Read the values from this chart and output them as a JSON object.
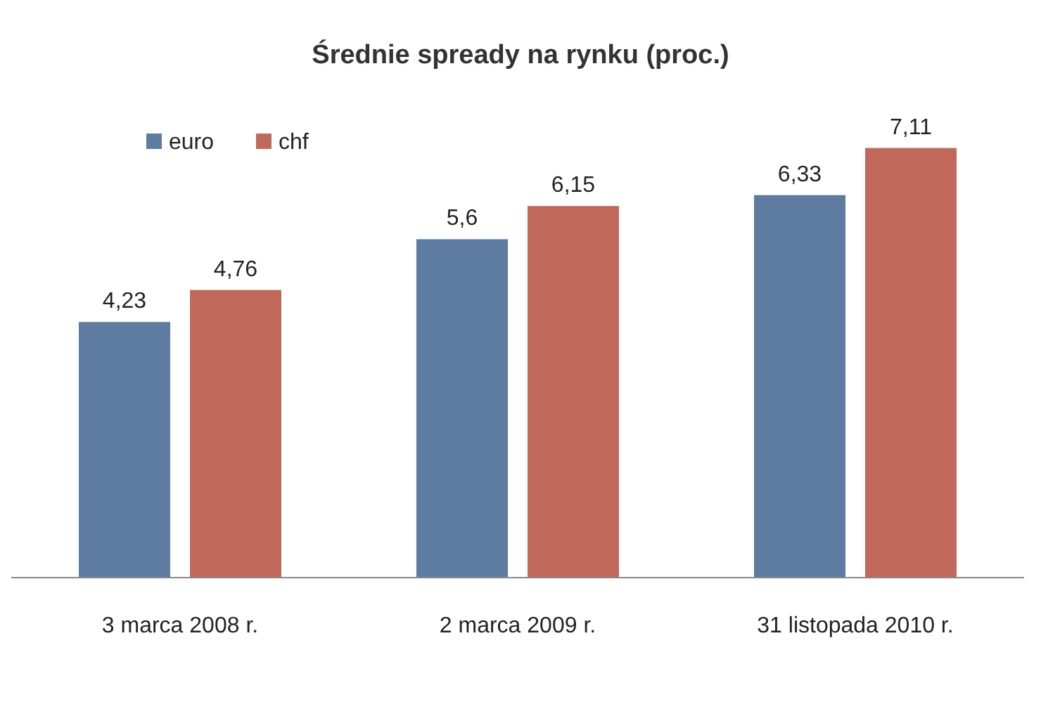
{
  "chart_data": {
    "type": "bar",
    "title": "Średnie spready na rynku (proc.)",
    "categories": [
      "3 marca 2008 r.",
      "2 marca 2009 r.",
      "31 listopada 2010 r."
    ],
    "series": [
      {
        "name": "euro",
        "color": "#5e7ca1",
        "values": [
          4.23,
          5.6,
          6.33
        ],
        "value_labels": [
          "4,23",
          "5,6",
          "6,33"
        ]
      },
      {
        "name": "chf",
        "color": "#c0695a",
        "values": [
          4.76,
          6.15,
          7.11
        ],
        "value_labels": [
          "4,76",
          "6,15",
          "7,11"
        ]
      }
    ],
    "legend": "top left",
    "grid": false
  }
}
